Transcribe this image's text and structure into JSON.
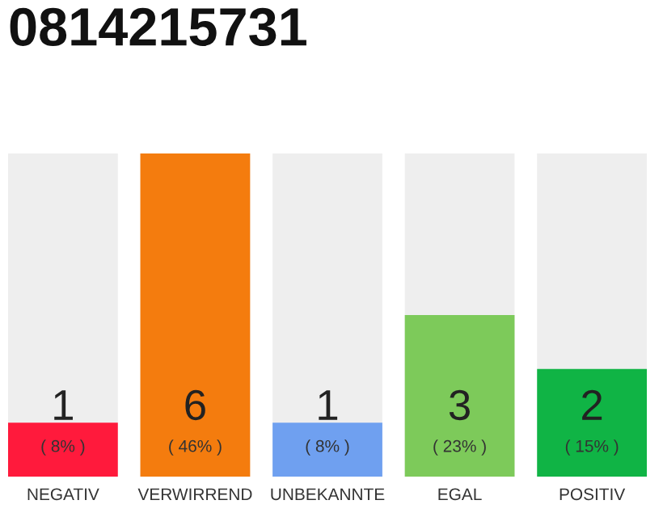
{
  "chart_data": {
    "type": "bar",
    "title": "0814215731",
    "categories": [
      "NEGATIV",
      "VERWIRREND",
      "UNBEKANNTE",
      "EGAL",
      "POSITIV"
    ],
    "values": [
      1,
      6,
      1,
      3,
      2
    ],
    "colors": [
      "#ff1a3c",
      "#f47c0e",
      "#6fa0f0",
      "#7dca5a",
      "#10b445"
    ],
    "data_labels": true,
    "annotations": [
      "( 8% )",
      "( 46% )",
      "( 8% )",
      "( 23% )",
      "( 15% )"
    ],
    "grid": false
  }
}
